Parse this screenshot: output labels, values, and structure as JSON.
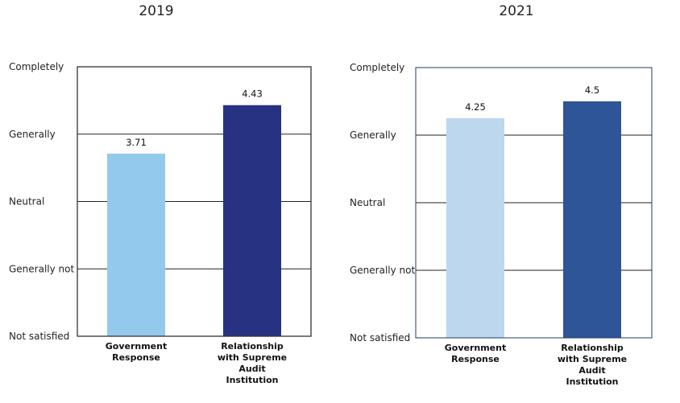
{
  "chart_data": [
    {
      "type": "bar",
      "title": "2019",
      "categories": [
        "Government Response",
        "Relationship with Supreme Audit Institution"
      ],
      "category_label_lines": [
        [
          "Government",
          "Response"
        ],
        [
          "Relationship",
          "with Supreme",
          "Audit",
          "Institution"
        ]
      ],
      "values": [
        3.71,
        4.43
      ],
      "value_labels": [
        "3.71",
        "4.43"
      ],
      "y_tick_labels": [
        "Not satisfied",
        "Generally not",
        "Neutral",
        "Generally",
        "Completely"
      ],
      "y_tick_values": [
        1,
        2,
        3,
        4,
        5
      ],
      "ylim": [
        1,
        5
      ],
      "grid": true,
      "colors": [
        "#93c9ed",
        "#283282"
      ],
      "frame_color": "#333333"
    },
    {
      "type": "bar",
      "title": "2021",
      "categories": [
        "Government Response",
        "Relationship with Supreme Audit Institution"
      ],
      "category_label_lines": [
        [
          "Government",
          "Response"
        ],
        [
          "Relationship",
          "with Supreme",
          "Audit",
          "Institution"
        ]
      ],
      "values": [
        4.25,
        4.5
      ],
      "value_labels": [
        "4.25",
        "4.5"
      ],
      "y_tick_labels": [
        "Not satisfied",
        "Generally not",
        "Neutral",
        "Generally",
        "Completely"
      ],
      "y_tick_values": [
        1,
        2,
        3,
        4,
        5
      ],
      "ylim": [
        1,
        5
      ],
      "grid": true,
      "colors": [
        "#bdd7ee",
        "#2e5597"
      ],
      "frame_color": "#203864"
    }
  ]
}
